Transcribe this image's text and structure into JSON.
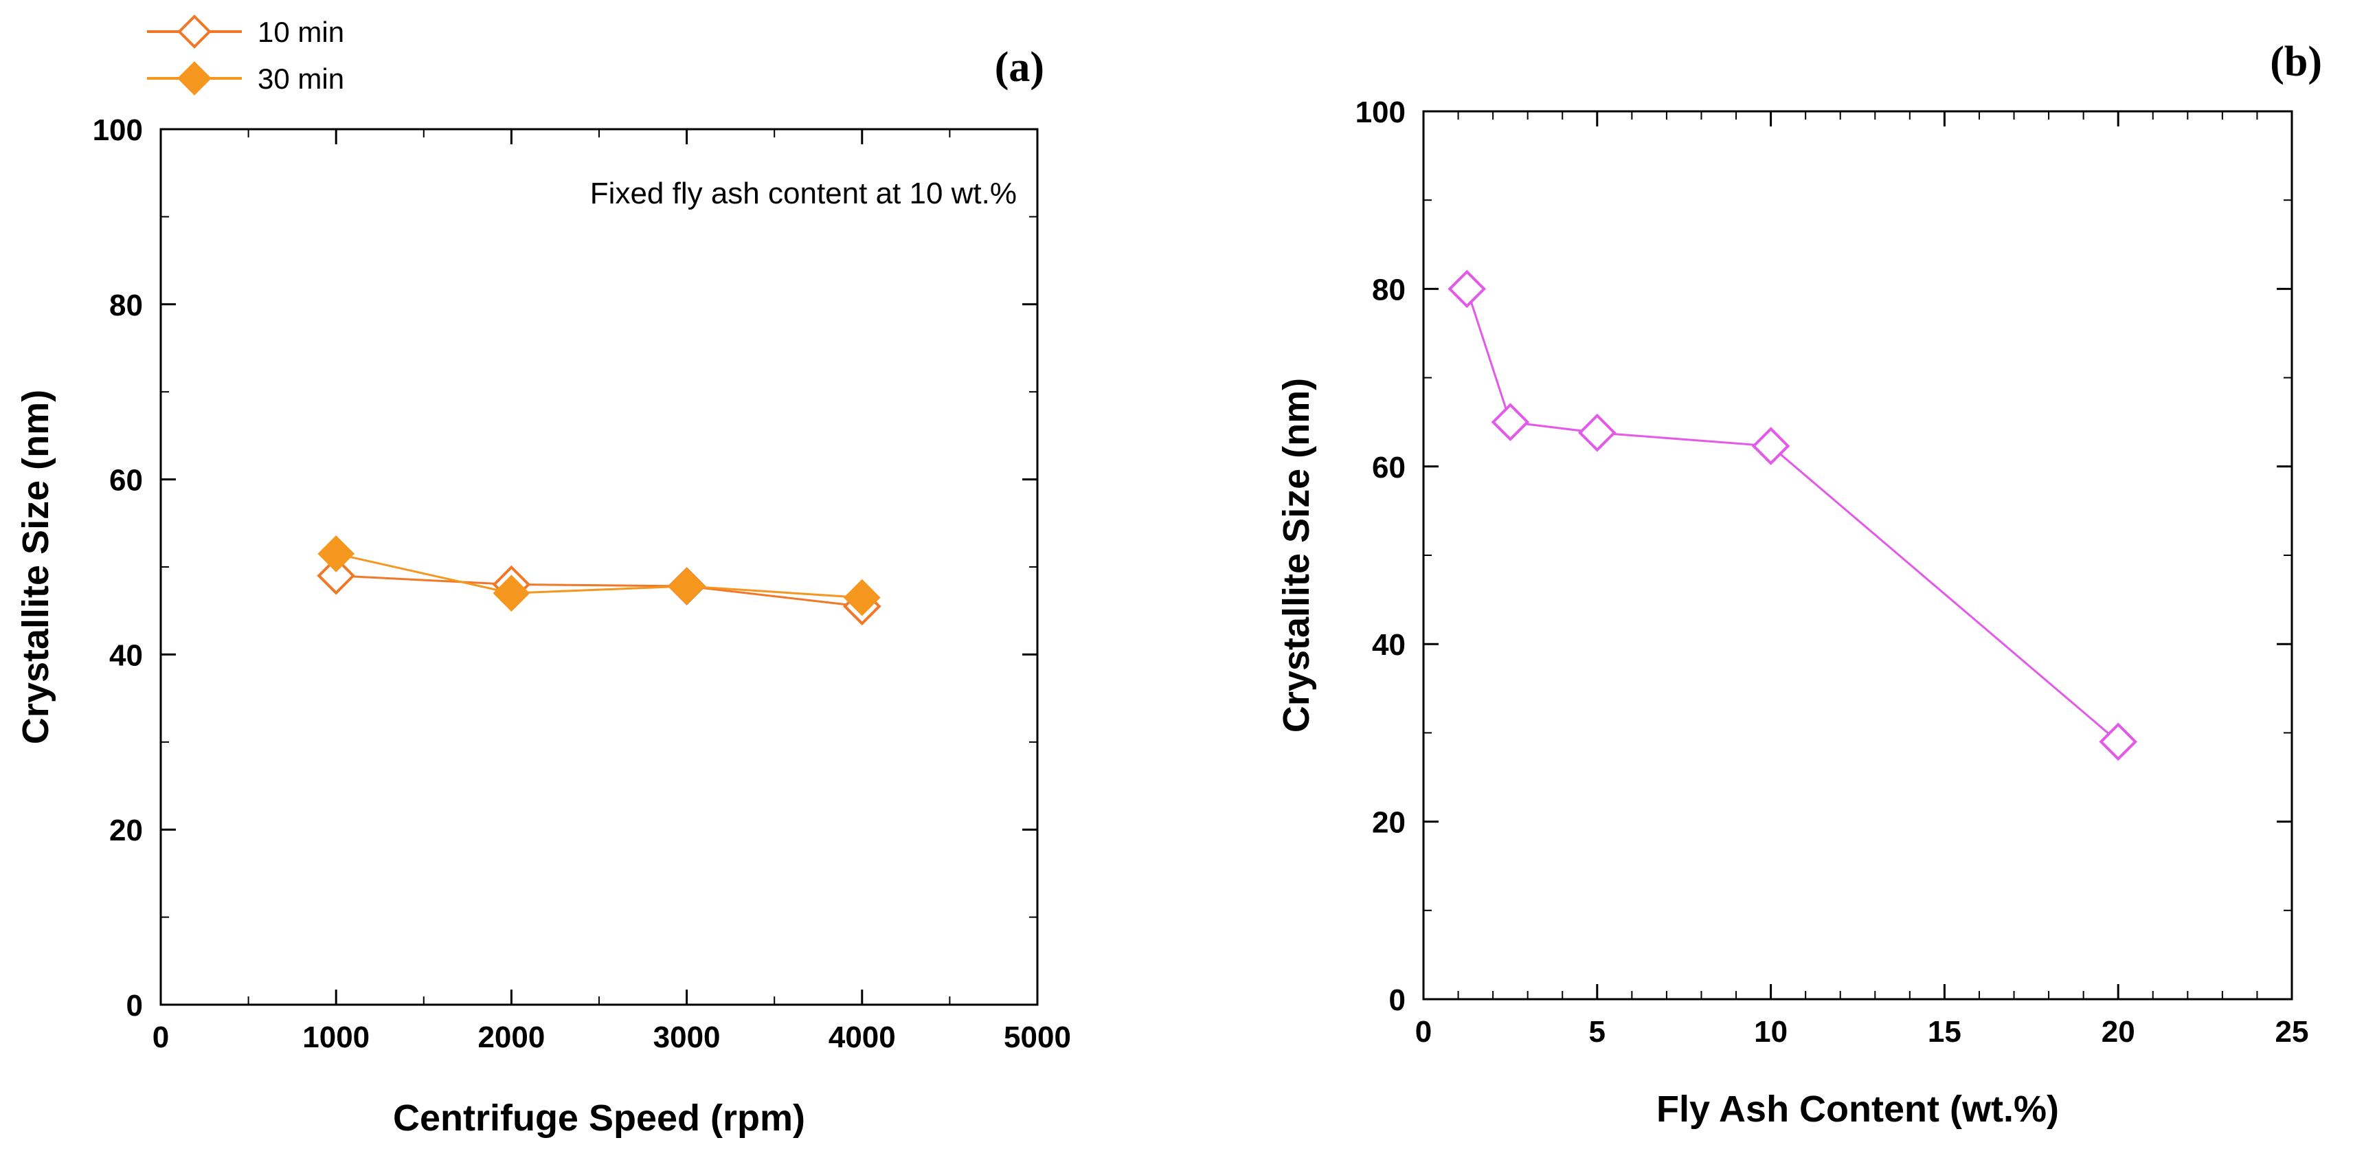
{
  "chart_data": [
    {
      "panel_label": "(a)",
      "type": "line",
      "xlabel": "Centrifuge Speed (rpm)",
      "ylabel": "Crystallite Size (nm)",
      "xlim": [
        0,
        5000
      ],
      "ylim": [
        0,
        100
      ],
      "x_ticks": [
        0,
        1000,
        2000,
        3000,
        4000,
        5000
      ],
      "y_ticks": [
        0,
        20,
        40,
        60,
        80,
        100
      ],
      "annotation": "Fixed fly ash content at 10 wt.%",
      "legend_position": "top-left (outside plot)",
      "grid": false,
      "series": [
        {
          "name": "10 min",
          "marker": "diamond-open",
          "color": "#F07828",
          "points": [
            [
              1000,
              49
            ],
            [
              2000,
              48
            ],
            [
              3000,
              47.8
            ],
            [
              4000,
              45.5
            ]
          ]
        },
        {
          "name": "30 min",
          "marker": "diamond-filled",
          "color": "#F5961E",
          "points": [
            [
              1000,
              51.5
            ],
            [
              2000,
              47
            ],
            [
              3000,
              47.8
            ],
            [
              4000,
              46.5
            ]
          ]
        }
      ]
    },
    {
      "panel_label": "(b)",
      "type": "line",
      "xlabel": "Fly Ash Content (wt.%)",
      "ylabel": "Crystallite Size (nm)",
      "xlim": [
        0,
        25
      ],
      "ylim": [
        0,
        100
      ],
      "x_ticks": [
        0,
        5,
        10,
        15,
        20,
        25
      ],
      "y_ticks": [
        0,
        20,
        40,
        60,
        80,
        100
      ],
      "grid": false,
      "series": [
        {
          "marker": "diamond-open",
          "color": "#E35AE8",
          "points": [
            [
              1.25,
              80
            ],
            [
              2.5,
              65
            ],
            [
              5,
              63.8
            ],
            [
              10,
              62.3
            ],
            [
              20,
              29
            ]
          ]
        }
      ]
    }
  ]
}
